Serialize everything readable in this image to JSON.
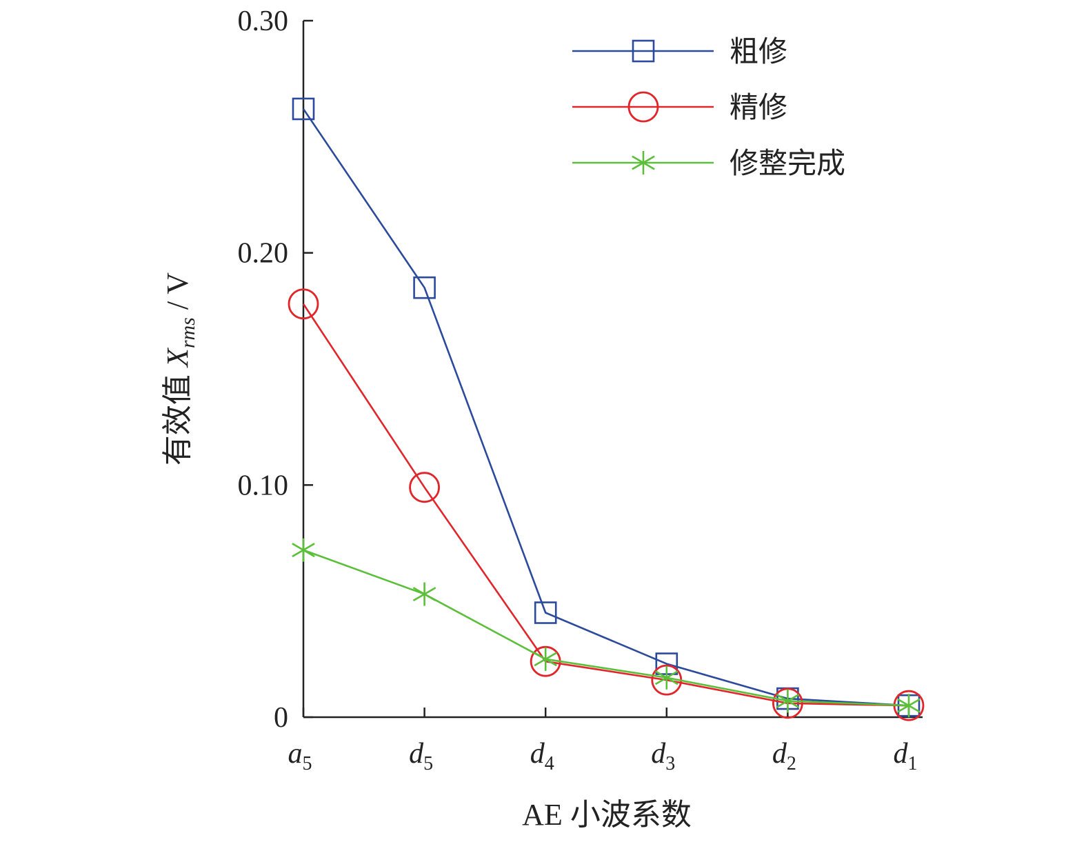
{
  "chart_data": {
    "type": "line",
    "categories": [
      {
        "base": "a",
        "sub": "5"
      },
      {
        "base": "d",
        "sub": "5"
      },
      {
        "base": "d",
        "sub": "4"
      },
      {
        "base": "d",
        "sub": "3"
      },
      {
        "base": "d",
        "sub": "2"
      },
      {
        "base": "d",
        "sub": "1"
      }
    ],
    "series": [
      {
        "name": "粗修",
        "color": "#2b4a9b",
        "marker": "square",
        "values": [
          0.262,
          0.185,
          0.045,
          0.023,
          0.008,
          0.005
        ]
      },
      {
        "name": "精修",
        "color": "#e0262b",
        "marker": "circle",
        "values": [
          0.178,
          0.099,
          0.024,
          0.016,
          0.006,
          0.005
        ]
      },
      {
        "name": "修整完成",
        "color": "#5bbf3a",
        "marker": "asterisk",
        "values": [
          0.072,
          0.053,
          0.025,
          0.017,
          0.007,
          0.005
        ]
      }
    ],
    "xlabel": "AE 小波系数",
    "ylabel": {
      "prefix": "有效值 ",
      "var": "X",
      "sub": "rms",
      "suffix": " / V"
    },
    "ylim": [
      0,
      0.3
    ],
    "yticks": [
      {
        "value": 0,
        "label": "0"
      },
      {
        "value": 0.1,
        "label": "0.10"
      },
      {
        "value": 0.2,
        "label": "0.20"
      },
      {
        "value": 0.3,
        "label": "0.30"
      }
    ],
    "grid": false,
    "legend_position": "top-right"
  }
}
